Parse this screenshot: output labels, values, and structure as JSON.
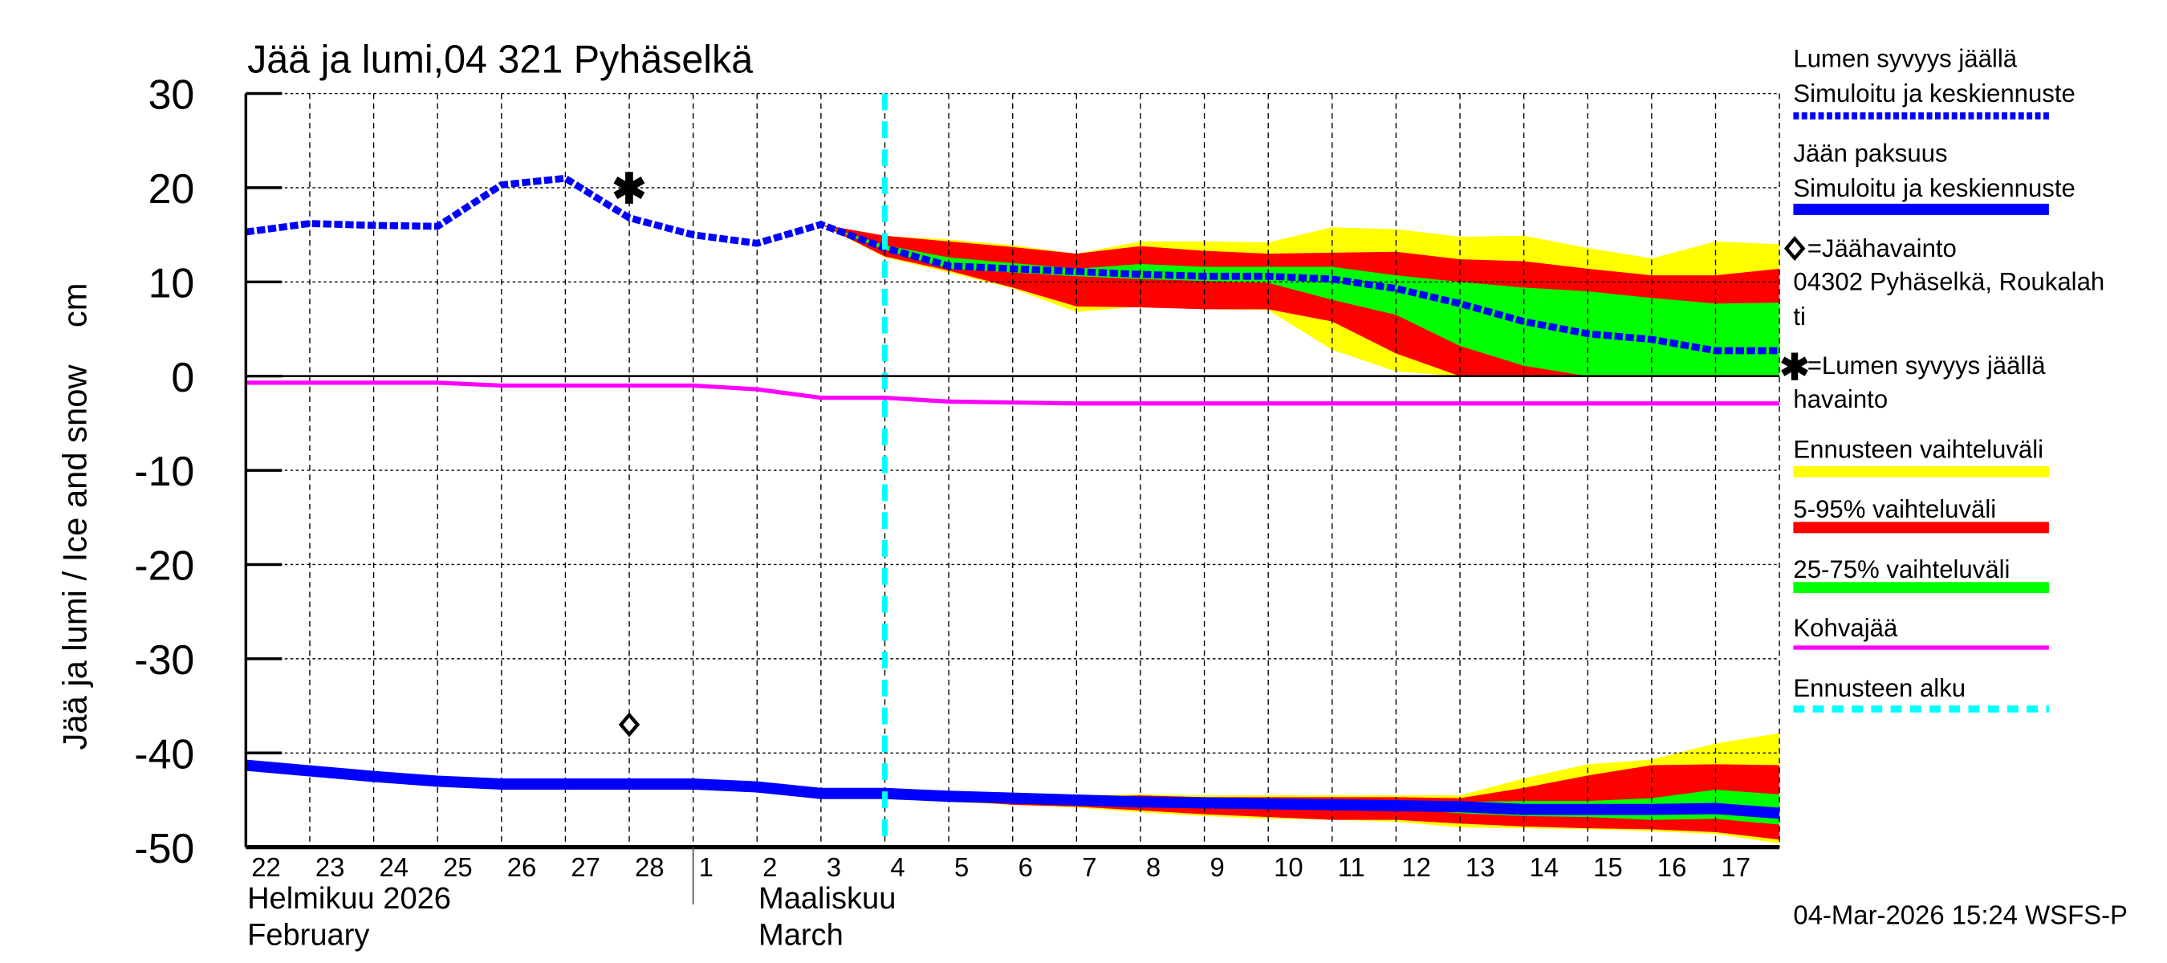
{
  "chart_data": {
    "type": "area",
    "title": "Jää ja lumi,04 321 Pyhäselkä",
    "ylabel": "Jää ja lumi / Ice and snow    cm",
    "ylim": [
      -50,
      30
    ],
    "yticks": [
      "30",
      "20",
      "10",
      "0",
      "-10",
      "-20",
      "-30",
      "-40",
      "-50"
    ],
    "ytick_values": [
      30,
      20,
      10,
      0,
      -10,
      -20,
      -30,
      -40,
      -50
    ],
    "xlim": [
      "2026-02-22",
      "2026-03-18"
    ],
    "xtick_labels": [
      "22",
      "23",
      "24",
      "25",
      "26",
      "27",
      "28",
      "1",
      "2",
      "3",
      "4",
      "5",
      "6",
      "7",
      "8",
      "9",
      "10",
      "11",
      "12",
      "13",
      "14",
      "15",
      "16",
      "17"
    ],
    "month_labels": [
      {
        "fi": "Helmikuu  2026",
        "en": "February",
        "date": "2026-02-22"
      },
      {
        "fi": "Maaliskuu",
        "en": "March",
        "date": "2026-03-02"
      }
    ],
    "grid": true,
    "forecast_start": "2026-03-04",
    "dates": [
      "2026-02-22",
      "2026-02-23",
      "2026-02-24",
      "2026-02-25",
      "2026-02-26",
      "2026-02-27",
      "2026-02-28",
      "2026-03-01",
      "2026-03-02",
      "2026-03-03",
      "2026-03-04",
      "2026-03-05",
      "2026-03-06",
      "2026-03-07",
      "2026-03-08",
      "2026-03-09",
      "2026-03-10",
      "2026-03-11",
      "2026-03-12",
      "2026-03-13",
      "2026-03-14",
      "2026-03-15",
      "2026-03-16",
      "2026-03-17",
      "2026-03-18"
    ],
    "snow_depth": [
      15.3,
      16.2,
      16.0,
      15.9,
      20.3,
      21.0,
      16.8,
      15.0,
      14.1,
      16.1,
      13.6,
      11.7,
      11.4,
      11.1,
      10.8,
      10.6,
      10.6,
      10.3,
      9.3,
      7.7,
      5.8,
      4.5,
      3.9,
      2.7,
      2.7
    ],
    "ice_thickness": [
      -41.3,
      -41.9,
      -42.5,
      -43.0,
      -43.3,
      -43.3,
      -43.3,
      -43.3,
      -43.6,
      -44.3,
      -44.3,
      -44.6,
      -44.8,
      -45.0,
      -45.2,
      -45.3,
      -45.4,
      -45.5,
      -45.6,
      -45.7,
      -46.0,
      -46.0,
      -46.0,
      -45.9,
      -46.4
    ],
    "slush_ice": [
      -0.7,
      -0.7,
      -0.7,
      -0.7,
      -1.0,
      -1.0,
      -1.0,
      -1.0,
      -1.4,
      -2.3,
      -2.3,
      -2.7,
      -2.8,
      -2.9,
      -2.9,
      -2.9,
      -2.9,
      -2.9,
      -2.9,
      -2.9,
      -2.9,
      -2.9,
      -2.9,
      -2.9,
      -2.9
    ],
    "band_dates": [
      "2026-03-03",
      "2026-03-04",
      "2026-03-05",
      "2026-03-06",
      "2026-03-07",
      "2026-03-08",
      "2026-03-09",
      "2026-03-10",
      "2026-03-11",
      "2026-03-12",
      "2026-03-13",
      "2026-03-14",
      "2026-03-15",
      "2026-03-16",
      "2026-03-17",
      "2026-03-18"
    ],
    "snow_bands": {
      "range_high": [
        16.1,
        14.9,
        14.5,
        13.9,
        13.0,
        14.3,
        14.3,
        14.2,
        15.8,
        15.6,
        14.8,
        14.9,
        13.6,
        12.5,
        14.3,
        14.0
      ],
      "p95": [
        16.1,
        14.9,
        14.3,
        13.7,
        13.0,
        13.8,
        13.3,
        13.0,
        13.1,
        13.2,
        12.4,
        12.2,
        11.4,
        10.7,
        10.7,
        11.4
      ],
      "p75": [
        16.1,
        13.9,
        12.6,
        12.0,
        11.4,
        11.9,
        11.6,
        11.6,
        11.6,
        10.7,
        10.0,
        9.4,
        9.0,
        8.3,
        7.7,
        7.8
      ],
      "p25": [
        16.1,
        13.4,
        11.4,
        11.0,
        10.6,
        10.3,
        10.1,
        9.9,
        8.1,
        6.5,
        3.2,
        1.1,
        0,
        0,
        0,
        0
      ],
      "p5": [
        16.1,
        12.7,
        11.2,
        9.4,
        7.4,
        7.3,
        7.1,
        7.1,
        5.8,
        2.4,
        0,
        0,
        0,
        0,
        0,
        0.5
      ],
      "range_low": [
        16.1,
        12.6,
        11.0,
        9.3,
        6.8,
        7.4,
        7.1,
        7.0,
        2.8,
        0.5,
        0,
        0,
        0,
        0,
        0,
        0
      ]
    },
    "ice_bands": {
      "range_high": [
        -44.3,
        -44.3,
        -44.5,
        -44.5,
        -44.5,
        -44.4,
        -44.5,
        -44.5,
        -44.5,
        -44.5,
        -44.5,
        -42.7,
        -41.2,
        -40.7,
        -39.0,
        -37.9
      ],
      "p95": [
        -44.3,
        -44.3,
        -44.5,
        -44.6,
        -44.7,
        -44.5,
        -44.7,
        -44.7,
        -44.7,
        -44.7,
        -44.8,
        -43.7,
        -42.4,
        -41.3,
        -41.2,
        -41.3
      ],
      "p75": [
        -44.3,
        -44.3,
        -44.5,
        -44.7,
        -44.8,
        -44.9,
        -45.0,
        -45.1,
        -45.2,
        -45.3,
        -45.2,
        -45.1,
        -45.1,
        -44.8,
        -43.9,
        -44.4
      ],
      "p25": [
        -44.3,
        -44.3,
        -44.8,
        -45.0,
        -45.3,
        -45.5,
        -45.6,
        -45.7,
        -45.8,
        -45.9,
        -46.4,
        -46.7,
        -46.8,
        -47.1,
        -47.0,
        -47.6
      ],
      "p5": [
        -44.3,
        -44.3,
        -45.0,
        -45.5,
        -45.7,
        -46.1,
        -46.5,
        -46.8,
        -47.1,
        -47.1,
        -47.5,
        -47.8,
        -48.0,
        -48.1,
        -48.4,
        -49.2
      ],
      "range_low": [
        -44.3,
        -44.3,
        -45.2,
        -45.5,
        -45.8,
        -46.3,
        -46.7,
        -47.0,
        -47.1,
        -47.3,
        -47.9,
        -48.0,
        -48.1,
        -48.3,
        -48.6,
        -49.6
      ]
    },
    "observations": {
      "snow": [
        {
          "date": "2026-02-28",
          "value": 20
        }
      ],
      "ice": [
        {
          "date": "2026-02-28",
          "value": -37
        }
      ]
    },
    "colors": {
      "snow_line": "#0000ff",
      "ice_line": "#0000ff",
      "range": "#ffff00",
      "p5_95": "#ff0000",
      "p25_75": "#00ff00",
      "slush": "#ff00ff",
      "forecast_start": "#00ffff"
    }
  },
  "legend": {
    "items": [
      {
        "label1": "Lumen syvyys jäällä",
        "label2": "Simuloitu ja keskiennuste",
        "swatch": "dotted-blue"
      },
      {
        "label1": "Jään paksuus",
        "label2": "Simuloitu ja keskiennuste",
        "swatch": "solid-blue"
      },
      {
        "label1": "=Jäähavainto",
        "label2": "04302 Pyhäselkä, Roukalah",
        "label3": "ti",
        "swatch": "diamond"
      },
      {
        "label1": "=Lumen syvyys jäällä",
        "label2": "havainto",
        "swatch": "star"
      },
      {
        "label1": "Ennusteen vaihteluväli",
        "swatch": "yellow"
      },
      {
        "label1": "5-95% vaihteluväli",
        "swatch": "red"
      },
      {
        "label1": "25-75% vaihteluväli",
        "swatch": "green"
      },
      {
        "label1": "Kohvajää",
        "swatch": "magenta"
      },
      {
        "label1": "Ennusteen alku",
        "swatch": "cyan-dashed"
      }
    ]
  },
  "footer": "04-Mar-2026 15:24 WSFS-P"
}
